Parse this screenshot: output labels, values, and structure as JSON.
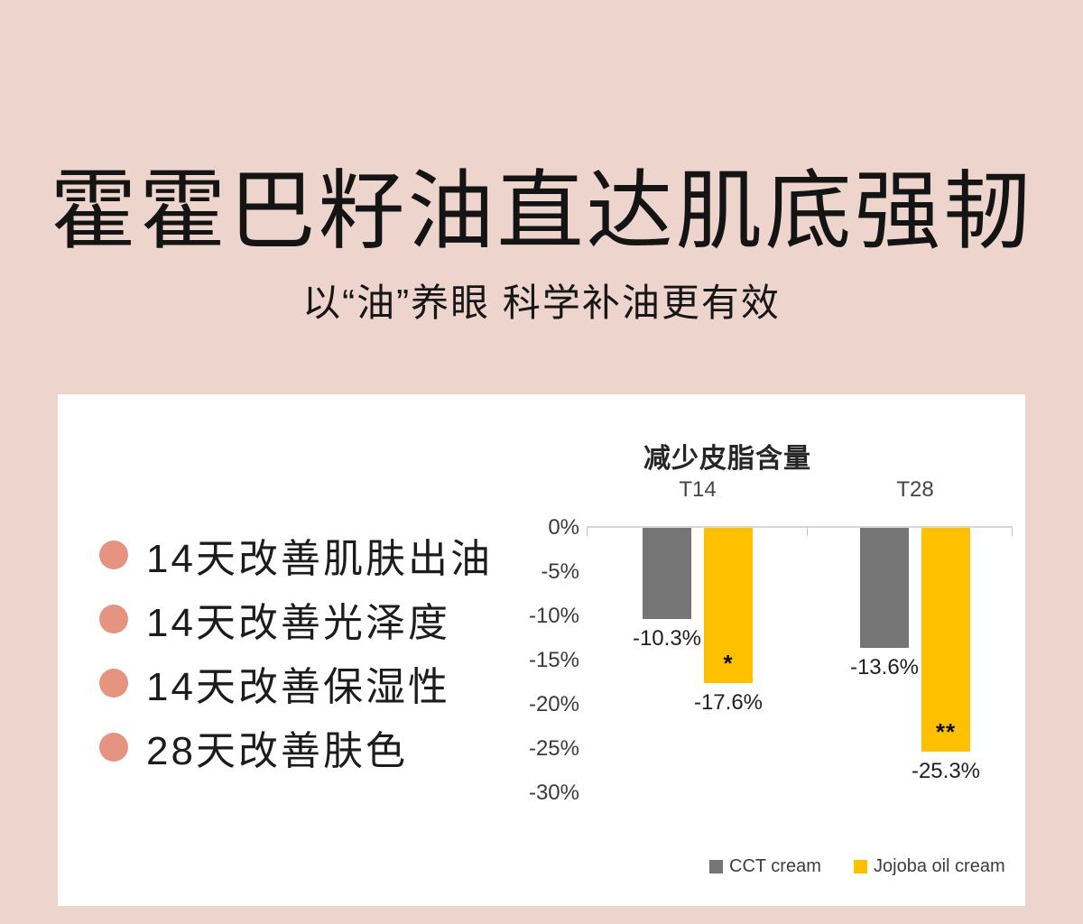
{
  "header": {
    "title": "霍霍巴籽油直达肌底强韧",
    "subtitle": "以“油”养眼 科学补油更有效"
  },
  "benefits": {
    "items": [
      "14天改善肌肤出油",
      "14天改善光泽度",
      "14天改善保湿性",
      "28天改善肤色"
    ]
  },
  "chart_data": {
    "type": "bar",
    "title": "减少皮脂含量",
    "categories": [
      "T14",
      "T28"
    ],
    "series": [
      {
        "name": "CCT cream",
        "color": "#757575",
        "values": [
          -10.3,
          -13.6
        ],
        "labels": [
          "-10.3%",
          "-13.6%"
        ],
        "annotations": [
          "",
          ""
        ]
      },
      {
        "name": "Jojoba oil cream",
        "color": "#FFC000",
        "values": [
          -17.6,
          -25.3
        ],
        "labels": [
          "-17.6%",
          "-25.3%"
        ],
        "annotations": [
          "*",
          "**"
        ]
      }
    ],
    "ylim": [
      -30,
      0
    ],
    "yticks": [
      "0%",
      "-5%",
      "-10%",
      "-15%",
      "-20%",
      "-25%",
      "-30%"
    ],
    "legend_position": "bottom",
    "grid": false
  },
  "colors": {
    "page_background": "#EDD4CC",
    "card_background": "#FFFFFF",
    "bullet_dot": "#E5947F",
    "bar_gray": "#757575",
    "bar_yellow": "#FFC000",
    "axis_line": "#D8D8D8"
  }
}
